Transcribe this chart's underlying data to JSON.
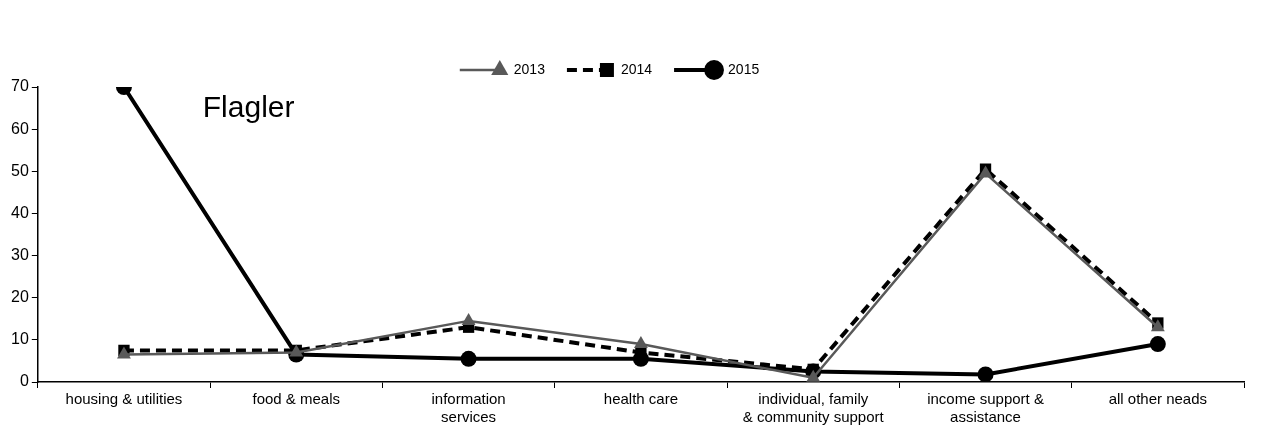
{
  "chart_data": {
    "type": "line",
    "title": "Flagler",
    "categories": [
      "housing & utilities",
      "food & meals",
      "information services",
      "health care",
      "individual, family & community support",
      "income support & assistance",
      "all other neads"
    ],
    "series": [
      {
        "name": "2013",
        "color": "#595959",
        "marker": "triangle",
        "line_style": "solid",
        "values": [
          6.5,
          7,
          14.5,
          9,
          1,
          49.5,
          13
        ]
      },
      {
        "name": "2014",
        "color": "#000000",
        "marker": "square",
        "line_style": "dashed",
        "values": [
          7.5,
          7.5,
          13,
          7,
          3,
          50.5,
          14
        ]
      },
      {
        "name": "2015",
        "color": "#000000",
        "marker": "circle",
        "line_style": "solid",
        "values": [
          70,
          6.5,
          5.5,
          5.5,
          2.5,
          1.8,
          9
        ]
      }
    ],
    "ylim": [
      0,
      70
    ],
    "yticks": [
      0,
      10,
      20,
      30,
      40,
      50,
      60,
      70
    ],
    "grid": false,
    "legend": "top"
  }
}
